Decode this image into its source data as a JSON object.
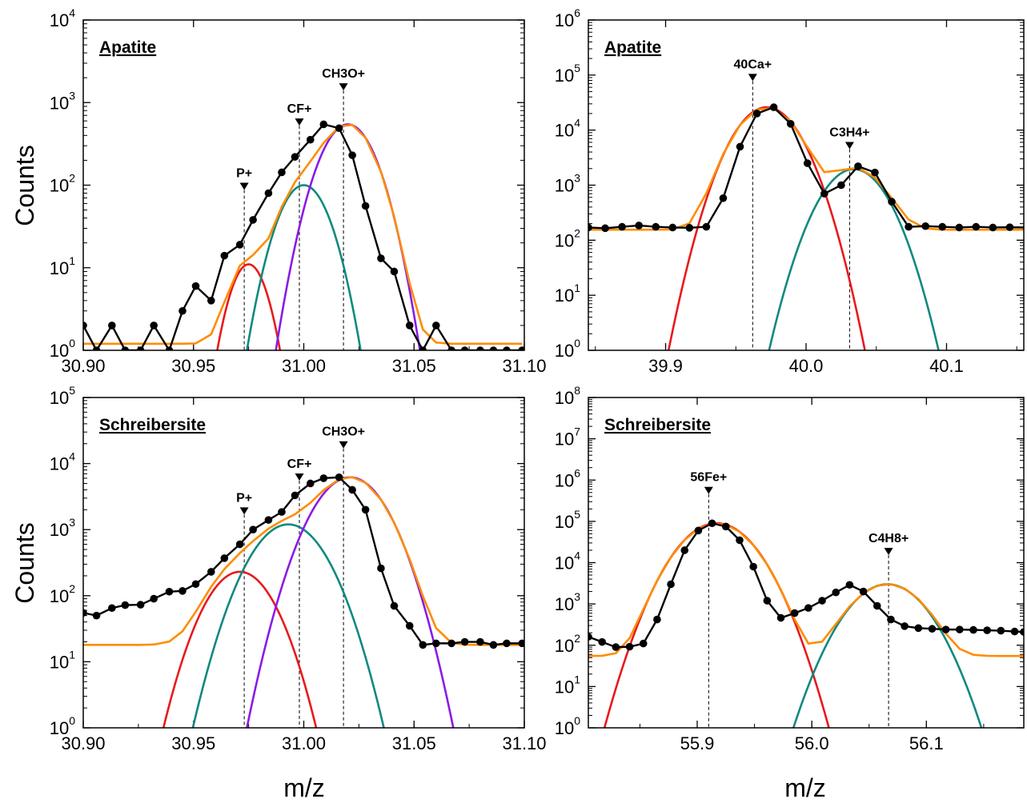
{
  "figure": {
    "ylabel": "Counts",
    "xlabel": "m/z"
  },
  "colors": {
    "data": "#000000",
    "fit": "#ff8c00",
    "red": "#e8191d",
    "teal": "#10897f",
    "purple": "#8a1be6"
  },
  "chart_data": [
    {
      "id": "apatite-31",
      "type": "line",
      "title": "Apatite",
      "yscale": "log",
      "xlim": [
        30.9,
        31.1
      ],
      "ylim_exp": [
        0,
        4
      ],
      "x_ticks": [
        "30.90",
        "30.95",
        "31.00",
        "31.05",
        "31.10"
      ],
      "x_tick_values": [
        30.9,
        30.95,
        31.0,
        31.05,
        31.1
      ],
      "baseline": 1.2,
      "measured": {
        "x": [
          30.9,
          30.906,
          30.913,
          30.919,
          30.926,
          30.932,
          30.939,
          30.945,
          30.951,
          30.958,
          30.964,
          30.971,
          30.977,
          30.984,
          30.99,
          30.996,
          31.003,
          31.009,
          31.016,
          31.022,
          31.028,
          31.035,
          31.041,
          31.048,
          31.054,
          31.06,
          31.067,
          31.073,
          31.08,
          31.086,
          31.092,
          31.099
        ],
        "y": [
          2,
          1,
          2,
          1,
          1,
          2,
          1,
          3,
          6,
          4,
          14,
          19,
          38,
          80,
          143,
          220,
          355,
          545,
          490,
          230,
          56,
          13,
          9,
          2,
          1,
          2,
          1,
          1,
          1,
          1,
          1,
          1
        ]
      },
      "components": [
        {
          "color": "red",
          "mu": 30.975,
          "amp": 11,
          "sigma": 0.0065
        },
        {
          "color": "teal",
          "mu": 31.0,
          "amp": 100,
          "sigma": 0.0085
        },
        {
          "color": "purple",
          "mu": 31.02,
          "amp": 545,
          "sigma": 0.0092
        }
      ],
      "peaks": [
        {
          "label": "P+",
          "x": 30.973,
          "y": 100
        },
        {
          "label": "CF+",
          "x": 30.998,
          "y": 600
        },
        {
          "label": "CH3O+",
          "x": 31.018,
          "y": 1600
        }
      ]
    },
    {
      "id": "apatite-40",
      "type": "line",
      "title": "Apatite",
      "yscale": "log",
      "xlim": [
        39.845,
        40.155
      ],
      "ylim_exp": [
        0,
        6
      ],
      "x_ticks": [
        "39.9",
        "40.0",
        "40.1"
      ],
      "x_tick_values": [
        39.9,
        40.0,
        40.1
      ],
      "baseline": 155,
      "measured": {
        "x": [
          39.845,
          39.857,
          39.869,
          39.881,
          39.893,
          39.905,
          39.917,
          39.929,
          39.941,
          39.953,
          39.965,
          39.977,
          39.989,
          40.001,
          40.013,
          40.025,
          40.037,
          40.049,
          40.061,
          40.073,
          40.085,
          40.097,
          40.109,
          40.121,
          40.133,
          40.145,
          40.157
        ],
        "y": [
          170,
          165,
          175,
          185,
          175,
          170,
          168,
          175,
          580,
          5000,
          20000,
          26000,
          13000,
          2500,
          700,
          1000,
          2200,
          1700,
          500,
          175,
          180,
          175,
          170,
          175,
          170,
          172,
          170
        ]
      },
      "components": [
        {
          "color": "red",
          "mu": 39.972,
          "amp": 26000,
          "sigma": 0.0155
        },
        {
          "color": "teal",
          "mu": 40.034,
          "amp": 1950,
          "sigma": 0.0155
        }
      ],
      "peaks": [
        {
          "label": "40Ca+",
          "x": 39.962,
          "y": 95000
        },
        {
          "label": "C3H4+",
          "x": 40.031,
          "y": 5500
        }
      ]
    },
    {
      "id": "schreibersite-31",
      "type": "line",
      "title": "Schreibersite",
      "yscale": "log",
      "xlim": [
        30.9,
        31.1
      ],
      "ylim_exp": [
        0,
        5
      ],
      "x_ticks": [
        "30.90",
        "30.95",
        "31.00",
        "31.05",
        "31.10"
      ],
      "x_tick_values": [
        30.9,
        30.95,
        31.0,
        31.05,
        31.1
      ],
      "baseline": 18,
      "measured": {
        "x": [
          30.9,
          30.906,
          30.913,
          30.919,
          30.926,
          30.932,
          30.939,
          30.945,
          30.951,
          30.958,
          30.964,
          30.971,
          30.977,
          30.984,
          30.99,
          30.996,
          31.003,
          31.009,
          31.016,
          31.022,
          31.028,
          31.035,
          31.041,
          31.048,
          31.054,
          31.06,
          31.067,
          31.073,
          31.08,
          31.086,
          31.092,
          31.099
        ],
        "y": [
          55,
          50,
          65,
          72,
          73,
          90,
          115,
          118,
          150,
          230,
          370,
          600,
          1000,
          1400,
          1850,
          3300,
          5000,
          6000,
          6200,
          4000,
          2000,
          260,
          70,
          35,
          18,
          19,
          19,
          20,
          20,
          18,
          19,
          19
        ]
      },
      "components": [
        {
          "color": "red",
          "mu": 30.971,
          "amp": 230,
          "sigma": 0.0105
        },
        {
          "color": "teal",
          "mu": 30.993,
          "amp": 1200,
          "sigma": 0.0115
        },
        {
          "color": "purple",
          "mu": 31.021,
          "amp": 6200,
          "sigma": 0.0112
        }
      ],
      "peaks": [
        {
          "label": "P+",
          "x": 30.973,
          "y": 2000
        },
        {
          "label": "CF+",
          "x": 30.998,
          "y": 6500
        },
        {
          "label": "CH3O+",
          "x": 31.018,
          "y": 20000
        }
      ]
    },
    {
      "id": "schreibersite-56",
      "type": "line",
      "title": "Schreibersite",
      "yscale": "log",
      "xlim": [
        55.805,
        56.185
      ],
      "ylim_exp": [
        0,
        8
      ],
      "x_ticks": [
        "55.9",
        "56.0",
        "56.1"
      ],
      "x_tick_values": [
        55.9,
        56.0,
        56.1
      ],
      "baseline": 55,
      "measured": {
        "x": [
          55.805,
          55.817,
          55.829,
          55.841,
          55.853,
          55.865,
          55.877,
          55.889,
          55.901,
          55.913,
          55.925,
          55.937,
          55.949,
          55.961,
          55.973,
          55.985,
          55.997,
          56.009,
          56.021,
          56.033,
          56.045,
          56.057,
          56.069,
          56.081,
          56.093,
          56.105,
          56.117,
          56.129,
          56.141,
          56.153,
          56.165,
          56.177,
          56.185
        ],
        "y": [
          160,
          120,
          90,
          92,
          110,
          420,
          3000,
          20000,
          60000,
          90000,
          75000,
          35000,
          8000,
          1200,
          460,
          600,
          800,
          1200,
          1900,
          2900,
          2000,
          900,
          420,
          290,
          260,
          250,
          240,
          240,
          235,
          230,
          225,
          215,
          210
        ]
      },
      "components": [
        {
          "color": "red",
          "mu": 55.917,
          "amp": 90000,
          "sigma": 0.0205
        },
        {
          "color": "teal",
          "mu": 56.066,
          "amp": 3000,
          "sigma": 0.0205
        }
      ],
      "peaks": [
        {
          "label": "56Fe+",
          "x": 55.91,
          "y": 600000
        },
        {
          "label": "C4H8+",
          "x": 56.067,
          "y": 20000
        }
      ]
    }
  ]
}
